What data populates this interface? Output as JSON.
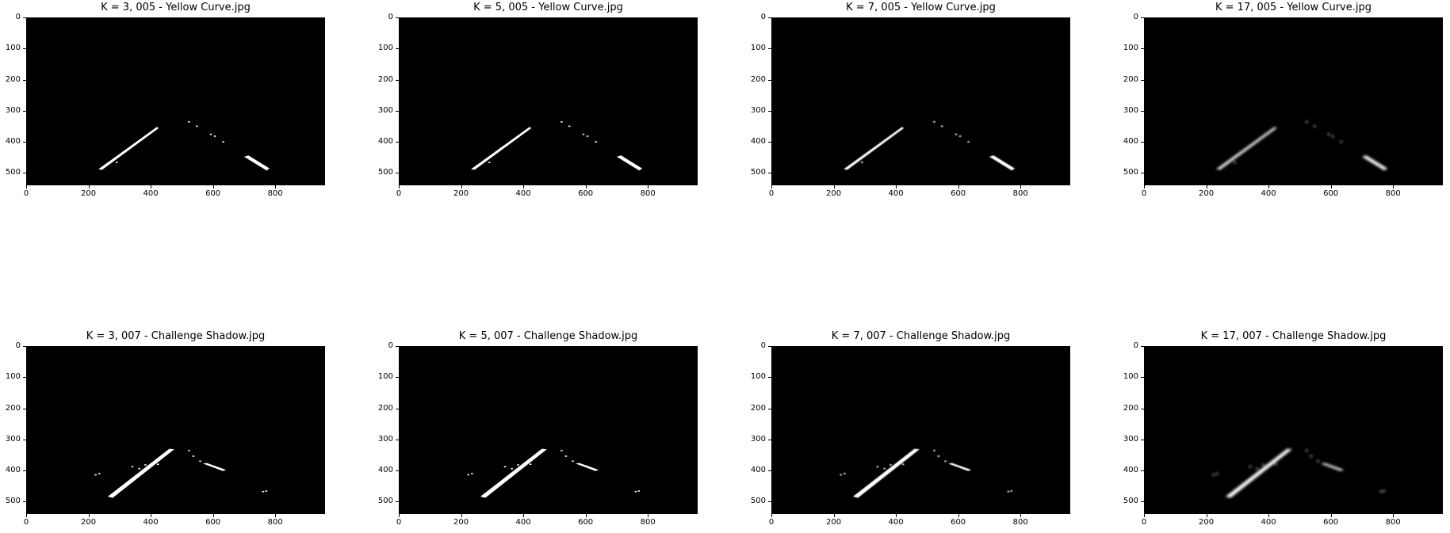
{
  "image": {
    "width": 960,
    "height": 540
  },
  "axes": {
    "x_ticks": [
      0,
      200,
      400,
      600,
      800
    ],
    "y_ticks": [
      0,
      100,
      200,
      300,
      400,
      500
    ]
  },
  "panels": [
    {
      "title": "K = 3, 005 - Yellow Curve.jpg",
      "k": 3,
      "scene": "yellow"
    },
    {
      "title": "K = 5, 005 - Yellow Curve.jpg",
      "k": 5,
      "scene": "yellow"
    },
    {
      "title": "K = 7, 005 - Yellow Curve.jpg",
      "k": 7,
      "scene": "yellow"
    },
    {
      "title": "K = 17, 005 - Yellow Curve.jpg",
      "k": 17,
      "scene": "yellow"
    },
    {
      "title": "K = 3, 007 - Challenge Shadow.jpg",
      "k": 3,
      "scene": "shadow"
    },
    {
      "title": "K = 5, 007 - Challenge Shadow.jpg",
      "k": 5,
      "scene": "shadow"
    },
    {
      "title": "K = 7, 007 - Challenge Shadow.jpg",
      "k": 7,
      "scene": "shadow"
    },
    {
      "title": "K = 17, 007 - Challenge Shadow.jpg",
      "k": 17,
      "scene": "shadow"
    }
  ],
  "colors": {
    "background": "#000000",
    "lane": "#ffffff",
    "figure": "#ffffff"
  }
}
